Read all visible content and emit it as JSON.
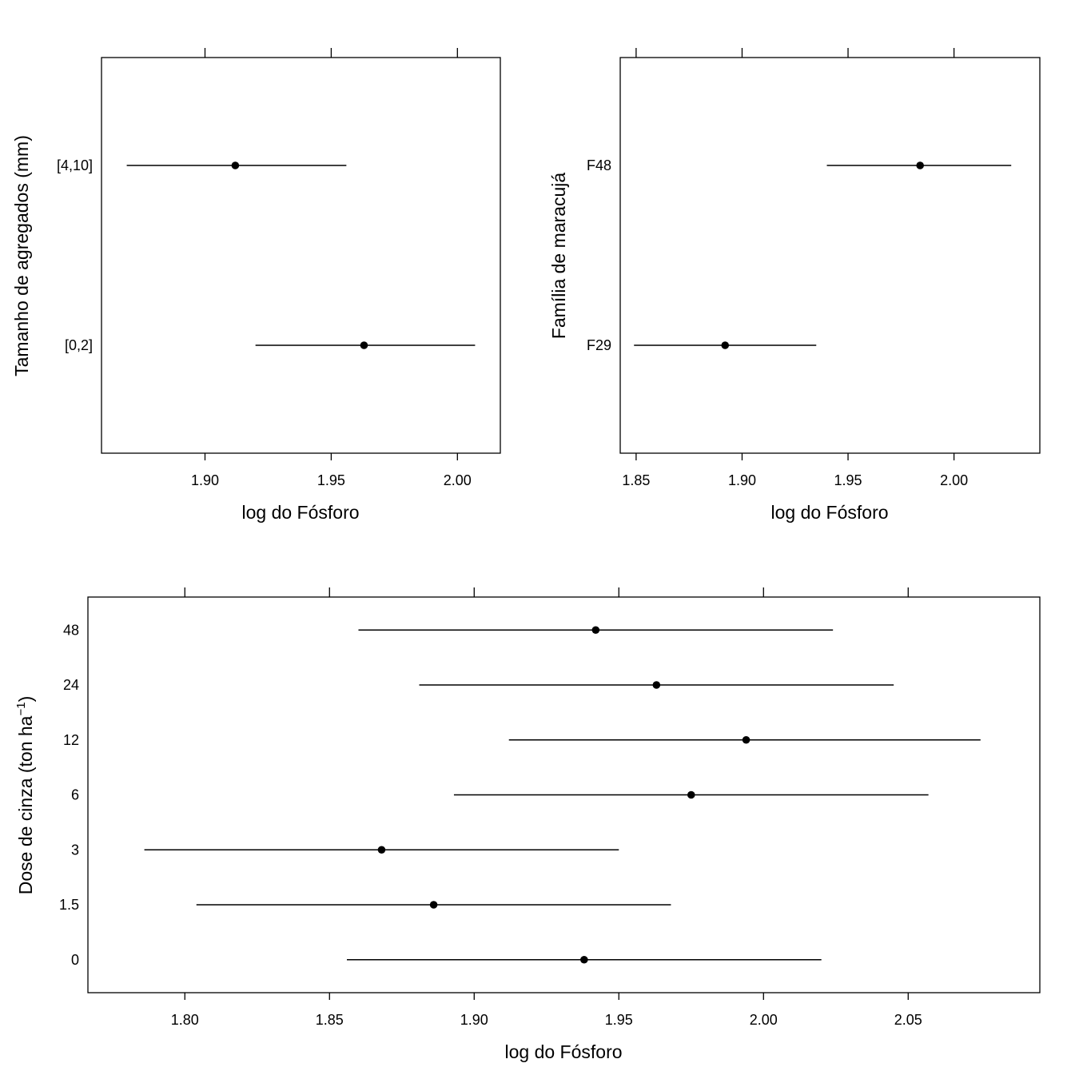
{
  "chart_data": [
    {
      "id": "aggregate",
      "type": "dotplot-intervals",
      "xlabel": "log do Fósforo",
      "ylabel": "Tamanho de agregados (mm)",
      "xlim": [
        1.859,
        2.017
      ],
      "xticks": [
        "1.90",
        "1.95",
        "2.00"
      ],
      "categories": [
        "[0,2]",
        "[4,10]"
      ],
      "estimates": [
        1.963,
        1.912
      ],
      "lower": [
        1.92,
        1.869
      ],
      "upper": [
        2.007,
        1.956
      ]
    },
    {
      "id": "family",
      "type": "dotplot-intervals",
      "xlabel": "log do Fósforo",
      "ylabel": "Família de maracujá",
      "xlim": [
        1.8425,
        2.0405
      ],
      "xticks": [
        "1.85",
        "1.90",
        "1.95",
        "2.00"
      ],
      "categories": [
        "F29",
        "F48"
      ],
      "estimates": [
        1.892,
        1.984
      ],
      "lower": [
        1.849,
        1.94
      ],
      "upper": [
        1.935,
        2.027
      ]
    },
    {
      "id": "dose",
      "type": "dotplot-intervals",
      "xlabel": "log do Fósforo",
      "ylabel": "Dose de cinza (ton ha",
      "ylabel_sup": "−1",
      "ylabel_end": ")",
      "xlim": [
        1.7665,
        2.0955
      ],
      "xticks": [
        "1.80",
        "1.85",
        "1.90",
        "1.95",
        "2.00",
        "2.05"
      ],
      "categories": [
        "0",
        "1.5",
        "3",
        "6",
        "12",
        "24",
        "48"
      ],
      "estimates": [
        1.938,
        1.886,
        1.868,
        1.975,
        1.994,
        1.963,
        1.942
      ],
      "lower": [
        1.856,
        1.804,
        1.786,
        1.893,
        1.912,
        1.881,
        1.86
      ],
      "upper": [
        2.02,
        1.968,
        1.95,
        2.057,
        2.075,
        2.045,
        2.024
      ]
    }
  ]
}
